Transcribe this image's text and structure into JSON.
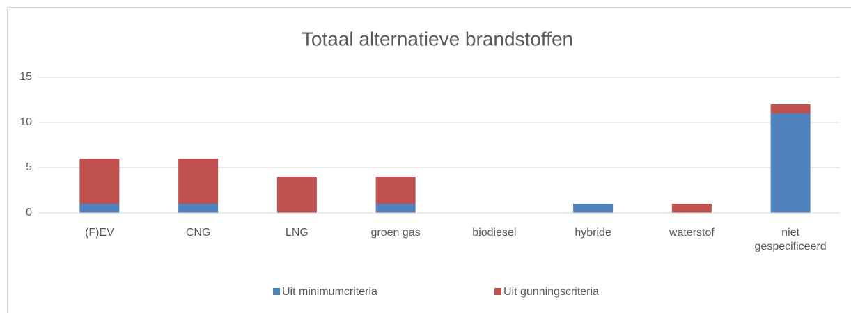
{
  "chart_data": {
    "type": "stacked_bar",
    "title": "Totaal alternatieve brandstoffen",
    "categories": [
      "(F)EV",
      "CNG",
      "LNG",
      "groen gas",
      "biodiesel",
      "hybride",
      "waterstof",
      "niet gespecificeerd"
    ],
    "series": [
      {
        "name": "Uit minimumcriteria",
        "color": "#4f81bd",
        "values": [
          1,
          1,
          0,
          1,
          0,
          1,
          0,
          11
        ]
      },
      {
        "name": "Uit gunningscriteria",
        "color": "#c0504d",
        "values": [
          5,
          5,
          4,
          3,
          0,
          0,
          1,
          1
        ]
      }
    ],
    "ylim": [
      0,
      15
    ],
    "yticks": [
      0,
      5,
      10,
      15
    ],
    "grid": true,
    "legend": "bottom"
  }
}
